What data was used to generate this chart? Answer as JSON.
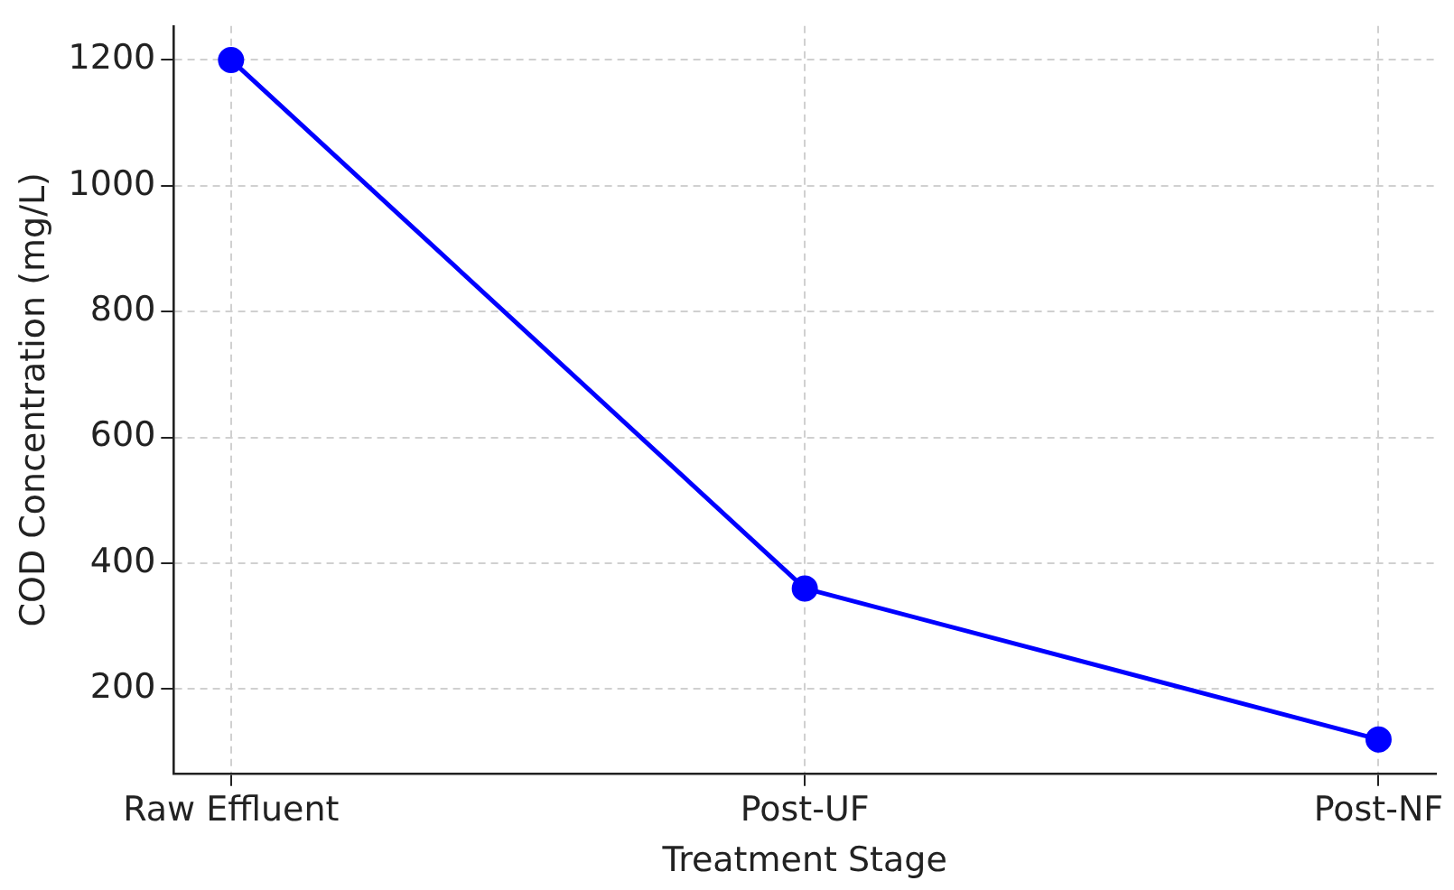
{
  "chart_data": {
    "type": "line",
    "xlabel": "Treatment Stage",
    "ylabel": "COD Concentration (mg/L)",
    "categories": [
      "Raw Effluent",
      "Post-UF",
      "Post-NF"
    ],
    "series": [
      {
        "color": "#0000ff",
        "values": [
          1200,
          360,
          120
        ]
      }
    ],
    "ylim": [
      66,
      1254
    ],
    "yticks": [
      200,
      400,
      600,
      800,
      1000,
      1200
    ],
    "grid": true,
    "marker": "circle",
    "line_style": "solid",
    "legend": false
  }
}
